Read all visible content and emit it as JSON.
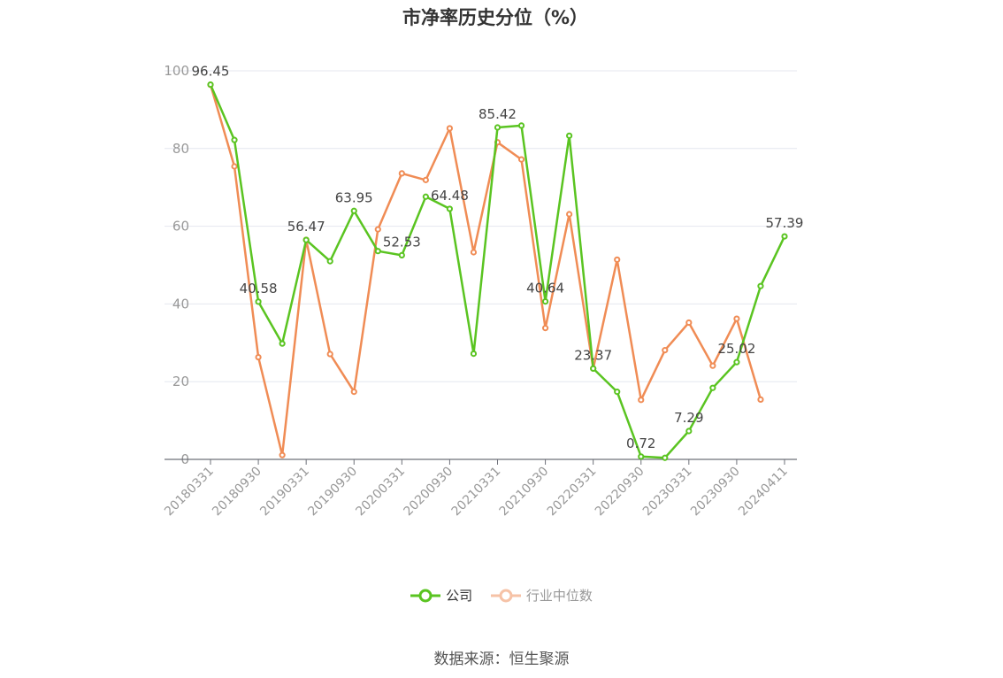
{
  "chart_data": {
    "type": "line",
    "title": "市净率历史分位（%）",
    "ylim": [
      0,
      100
    ],
    "yticks": [
      0,
      20,
      40,
      60,
      80,
      100
    ],
    "xtick_labels": [
      "20180331",
      "20180930",
      "20190331",
      "20190930",
      "20200331",
      "20200930",
      "20210331",
      "20210930",
      "20220331",
      "20220930",
      "20230331",
      "20230930",
      "20240411"
    ],
    "x": [
      "20180331",
      "20180630",
      "20180930",
      "20181231",
      "20190331",
      "20190630",
      "20190930",
      "20191231",
      "20200331",
      "20200630",
      "20200930",
      "20201231",
      "20210331",
      "20210630",
      "20210930",
      "20211231",
      "20220331",
      "20220630",
      "20220930",
      "20221231",
      "20230331",
      "20230630",
      "20230930",
      "20231231",
      "20240411"
    ],
    "series": [
      {
        "name": "公司",
        "color": "#5ac421",
        "values": [
          96.45,
          82.2,
          40.58,
          29.8,
          56.47,
          51.0,
          63.95,
          53.6,
          52.53,
          67.6,
          64.48,
          27.2,
          85.42,
          85.9,
          40.64,
          83.3,
          23.37,
          17.4,
          0.72,
          0.4,
          7.29,
          18.4,
          25.02,
          44.6,
          57.39
        ],
        "labels": [
          "96.45",
          null,
          "40.58",
          null,
          "56.47",
          null,
          "63.95",
          null,
          "52.53",
          null,
          "64.48",
          null,
          "85.42",
          null,
          "40.64",
          null,
          "23.37",
          null,
          "0.72",
          null,
          "7.29",
          null,
          "25.02",
          null,
          "57.39"
        ]
      },
      {
        "name": "行业中位数",
        "color": "#f08c55",
        "values": [
          96.4,
          75.4,
          26.3,
          1.1,
          56.5,
          27.1,
          17.4,
          59.2,
          73.6,
          71.9,
          85.2,
          53.3,
          81.6,
          77.2,
          33.8,
          63.1,
          23.4,
          51.4,
          15.3,
          28.1,
          35.2,
          24.1,
          36.2,
          15.4,
          null
        ]
      }
    ],
    "grid": true,
    "legend_position": "bottom"
  },
  "legend": {
    "company": "公司",
    "industry": "行业中位数"
  },
  "source": "数据来源：恒生聚源"
}
